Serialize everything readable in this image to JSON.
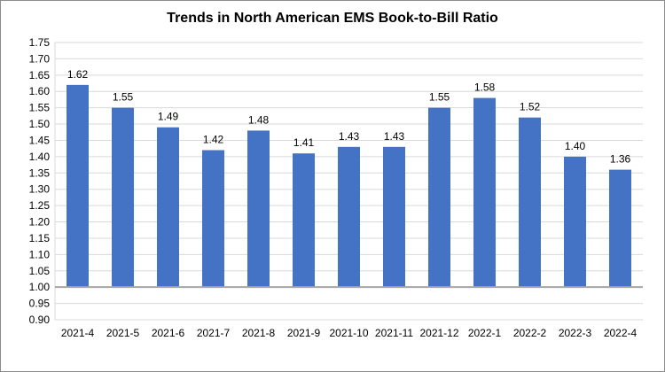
{
  "chart_data": {
    "type": "bar",
    "title": "Trends in North American EMS Book-to-Bill Ratio",
    "xlabel": "",
    "ylabel": "",
    "categories": [
      "2021-4",
      "2021-5",
      "2021-6",
      "2021-7",
      "2021-8",
      "2021-9",
      "2021-10",
      "2021-11",
      "2021-12",
      "2022-1",
      "2022-2",
      "2022-3",
      "2022-4"
    ],
    "values": [
      1.62,
      1.55,
      1.49,
      1.42,
      1.48,
      1.41,
      1.43,
      1.43,
      1.55,
      1.58,
      1.52,
      1.4,
      1.36
    ],
    "value_labels": [
      "1.62",
      "1.55",
      "1.49",
      "1.42",
      "1.48",
      "1.41",
      "1.43",
      "1.43",
      "1.55",
      "1.58",
      "1.52",
      "1.40",
      "1.36"
    ],
    "ylim": [
      0.9,
      1.75
    ],
    "yticks": [
      "0.90",
      "0.95",
      "1.00",
      "1.05",
      "1.10",
      "1.15",
      "1.20",
      "1.25",
      "1.30",
      "1.35",
      "1.40",
      "1.45",
      "1.50",
      "1.55",
      "1.60",
      "1.65",
      "1.70",
      "1.75"
    ],
    "baseline": 1.0,
    "grid": true,
    "legend": "none",
    "bar_color": "#4472C4",
    "grid_color": "#d9d9d9",
    "baseline_color": "#a6a6a6"
  }
}
